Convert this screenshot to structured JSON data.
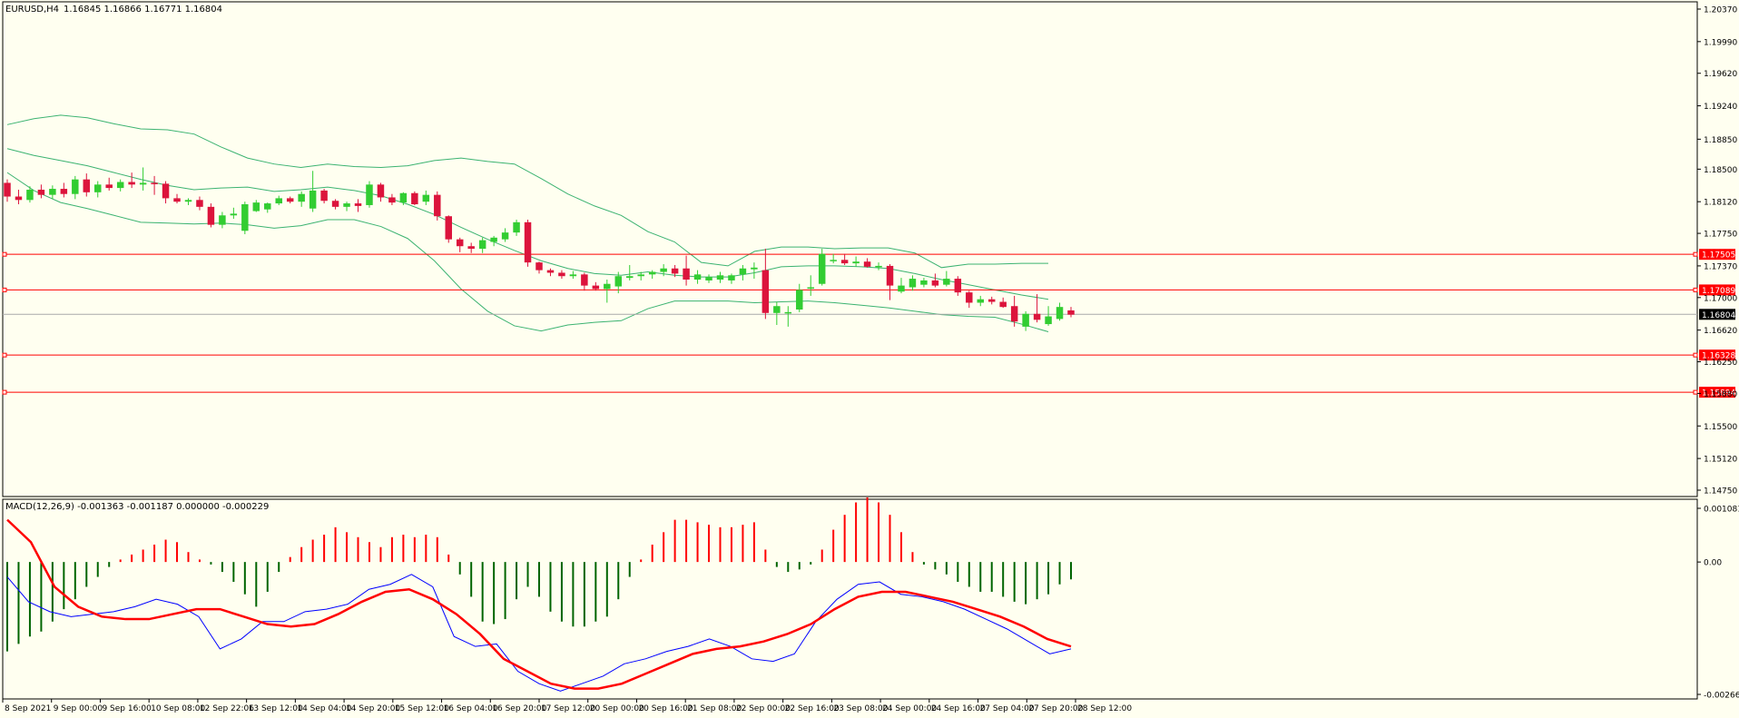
{
  "header": {
    "symbol": "EURUSD,H4",
    "ohlc": "1.16845 1.16866 1.16771 1.16804"
  },
  "colors": {
    "background": "#fffff0",
    "bull": "#32cd32",
    "bear": "#dc143c",
    "bands": "#3cb371",
    "levels": "#ff0000",
    "macd_hist_pos": "#ff0000",
    "macd_hist_neg": "#006400",
    "macd_main": "#0000ff",
    "macd_signal": "#ff0000",
    "axis_text": "#000000",
    "current_price_box": "#000000"
  },
  "chart_data": [
    {
      "type": "candlestick",
      "title": "EURUSD,H4",
      "ylim": [
        1.1475,
        1.2037
      ],
      "y_ticks": [
        "1.20370",
        "1.19990",
        "1.19620",
        "1.19240",
        "1.18850",
        "1.18500",
        "1.18120",
        "1.17750",
        "1.17370",
        "1.17000",
        "1.16620",
        "1.16250",
        "1.15880",
        "1.15500",
        "1.15120",
        "1.14750"
      ],
      "x_labels": [
        "8 Sep 2021",
        "9 Sep 00:00",
        "9 Sep 16:00",
        "10 Sep 08:00",
        "12 Sep 22:06",
        "13 Sep 12:00",
        "14 Sep 04:00",
        "14 Sep 20:00",
        "15 Sep 12:00",
        "16 Sep 04:00",
        "16 Sep 20:00",
        "17 Sep 12:00",
        "20 Sep 00:00",
        "20 Sep 16:00",
        "21 Sep 08:00",
        "22 Sep 00:00",
        "22 Sep 16:00",
        "23 Sep 08:00",
        "24 Sep 00:00",
        "24 Sep 16:00",
        "27 Sep 04:00",
        "27 Sep 20:00",
        "28 Sep 12:00"
      ],
      "candles": [
        [
          1.1834,
          1.1838,
          1.1812,
          1.1818
        ],
        [
          1.1818,
          1.1826,
          1.1809,
          1.1814
        ],
        [
          1.1814,
          1.183,
          1.1811,
          1.1826
        ],
        [
          1.1826,
          1.1832,
          1.1816,
          1.182
        ],
        [
          1.182,
          1.1831,
          1.1815,
          1.1827
        ],
        [
          1.1827,
          1.1834,
          1.1817,
          1.1821
        ],
        [
          1.1821,
          1.1842,
          1.1815,
          1.1838
        ],
        [
          1.1838,
          1.1845,
          1.1818,
          1.1823
        ],
        [
          1.1823,
          1.1836,
          1.1817,
          1.1832
        ],
        [
          1.1832,
          1.184,
          1.1825,
          1.1828
        ],
        [
          1.1828,
          1.1838,
          1.1824,
          1.1835
        ],
        [
          1.1835,
          1.1846,
          1.1828,
          1.1832
        ],
        [
          1.1832,
          1.1852,
          1.1825,
          1.1834
        ],
        [
          1.1834,
          1.1842,
          1.182,
          1.1833
        ],
        [
          1.1833,
          1.1836,
          1.181,
          1.1816
        ],
        [
          1.1816,
          1.1821,
          1.181,
          1.1812
        ],
        [
          1.1812,
          1.1816,
          1.1808,
          1.1814
        ],
        [
          1.1814,
          1.1818,
          1.1802,
          1.1806
        ],
        [
          1.1806,
          1.181,
          1.1782,
          1.1785
        ],
        [
          1.1785,
          1.18,
          1.1781,
          1.1796
        ],
        [
          1.1796,
          1.1805,
          1.1792,
          1.1798
        ],
        [
          1.1778,
          1.1812,
          1.1774,
          1.1809
        ],
        [
          1.1801,
          1.1814,
          1.18,
          1.1811
        ],
        [
          1.1803,
          1.1811,
          1.1799,
          1.181
        ],
        [
          1.181,
          1.1819,
          1.1808,
          1.1816
        ],
        [
          1.1816,
          1.1818,
          1.181,
          1.1812
        ],
        [
          1.1812,
          1.1824,
          1.1806,
          1.1821
        ],
        [
          1.1804,
          1.1848,
          1.18,
          1.1825
        ],
        [
          1.1825,
          1.1827,
          1.181,
          1.1813
        ],
        [
          1.1813,
          1.1815,
          1.1803,
          1.1806
        ],
        [
          1.1806,
          1.1812,
          1.1801,
          1.181
        ],
        [
          1.181,
          1.1815,
          1.18,
          1.1807
        ],
        [
          1.1808,
          1.1836,
          1.1805,
          1.1832
        ],
        [
          1.1832,
          1.1834,
          1.1812,
          1.1817
        ],
        [
          1.1817,
          1.1821,
          1.1808,
          1.1811
        ],
        [
          1.1811,
          1.1823,
          1.1808,
          1.1822
        ],
        [
          1.1822,
          1.1824,
          1.1808,
          1.1809
        ],
        [
          1.1812,
          1.1825,
          1.1808,
          1.182
        ],
        [
          1.182,
          1.1824,
          1.179,
          1.1795
        ],
        [
          1.1795,
          1.1796,
          1.1764,
          1.1768
        ],
        [
          1.1768,
          1.177,
          1.1753,
          1.176
        ],
        [
          1.176,
          1.1764,
          1.1752,
          1.1757
        ],
        [
          1.1757,
          1.177,
          1.1752,
          1.1767
        ],
        [
          1.1765,
          1.1772,
          1.176,
          1.177
        ],
        [
          1.1768,
          1.1781,
          1.1765,
          1.1776
        ],
        [
          1.1776,
          1.1791,
          1.1772,
          1.1788
        ],
        [
          1.1788,
          1.1791,
          1.1736,
          1.1741
        ],
        [
          1.1741,
          1.1742,
          1.1728,
          1.1732
        ],
        [
          1.1732,
          1.1734,
          1.1725,
          1.1729
        ],
        [
          1.1729,
          1.1732,
          1.1722,
          1.1725
        ],
        [
          1.1725,
          1.1731,
          1.1722,
          1.1727
        ],
        [
          1.1727,
          1.1729,
          1.1708,
          1.1714
        ],
        [
          1.1714,
          1.1718,
          1.1708,
          1.171
        ],
        [
          1.171,
          1.1721,
          1.1694,
          1.1716
        ],
        [
          1.1713,
          1.173,
          1.1705,
          1.1725
        ],
        [
          1.1723,
          1.1738,
          1.172,
          1.1725
        ],
        [
          1.1725,
          1.173,
          1.172,
          1.1727
        ],
        [
          1.1727,
          1.1732,
          1.1722,
          1.173
        ],
        [
          1.173,
          1.1739,
          1.1725,
          1.1734
        ],
        [
          1.1734,
          1.1738,
          1.1724,
          1.1728
        ],
        [
          1.1734,
          1.1749,
          1.1714,
          1.1721
        ],
        [
          1.1721,
          1.1732,
          1.1716,
          1.1727
        ],
        [
          1.172,
          1.1727,
          1.1717,
          1.1724
        ],
        [
          1.1721,
          1.173,
          1.1717,
          1.1726
        ],
        [
          1.172,
          1.1728,
          1.1716,
          1.1726
        ],
        [
          1.1727,
          1.1738,
          1.172,
          1.1734
        ],
        [
          1.1733,
          1.1741,
          1.1722,
          1.1735
        ],
        [
          1.1732,
          1.1757,
          1.1675,
          1.1682
        ],
        [
          1.1682,
          1.1695,
          1.1668,
          1.169
        ],
        [
          1.1682,
          1.169,
          1.1666,
          1.1683
        ],
        [
          1.1686,
          1.1716,
          1.1683,
          1.1709
        ],
        [
          1.1712,
          1.1726,
          1.1702,
          1.1712
        ],
        [
          1.1716,
          1.1757,
          1.1714,
          1.1751
        ],
        [
          1.1743,
          1.1751,
          1.174,
          1.1744
        ],
        [
          1.1744,
          1.1751,
          1.1738,
          1.174
        ],
        [
          1.174,
          1.1748,
          1.1736,
          1.1742
        ],
        [
          1.1742,
          1.1746,
          1.1735,
          1.1736
        ],
        [
          1.1736,
          1.1741,
          1.1732,
          1.1737
        ],
        [
          1.1737,
          1.1739,
          1.1697,
          1.1714
        ],
        [
          1.1707,
          1.1723,
          1.1705,
          1.1714
        ],
        [
          1.1712,
          1.1726,
          1.1708,
          1.1722
        ],
        [
          1.1715,
          1.1723,
          1.1712,
          1.172
        ],
        [
          1.172,
          1.1728,
          1.1712,
          1.1714
        ],
        [
          1.1715,
          1.1731,
          1.1713,
          1.1722
        ],
        [
          1.1722,
          1.1725,
          1.1702,
          1.1706
        ],
        [
          1.1706,
          1.1708,
          1.1688,
          1.1694
        ],
        [
          1.1694,
          1.1702,
          1.169,
          1.1698
        ],
        [
          1.1698,
          1.1701,
          1.1692,
          1.1695
        ],
        [
          1.1695,
          1.17,
          1.1688,
          1.1689
        ],
        [
          1.169,
          1.1702,
          1.1666,
          1.1672
        ],
        [
          1.1666,
          1.1684,
          1.1661,
          1.1681
        ],
        [
          1.1681,
          1.1704,
          1.1671,
          1.1674
        ],
        [
          1.1669,
          1.169,
          1.1667,
          1.1678
        ],
        [
          1.1675,
          1.1694,
          1.1673,
          1.1689
        ],
        [
          1.1685,
          1.1689,
          1.1677,
          1.168
        ]
      ],
      "bollinger_upper": [
        1.1902,
        1.1909,
        1.1913,
        1.191,
        1.1903,
        1.1897,
        1.1896,
        1.1891,
        1.1876,
        1.1863,
        1.1856,
        1.1852,
        1.1856,
        1.1853,
        1.1852,
        1.1854,
        1.186,
        1.1863,
        1.1859,
        1.1856,
        1.1839,
        1.1821,
        1.1807,
        1.1796,
        1.1777,
        1.1765,
        1.1741,
        1.1737,
        1.1754,
        1.1759,
        1.1759,
        1.1757,
        1.1758,
        1.1758,
        1.1752,
        1.1735,
        1.1739,
        1.1739,
        1.174,
        1.174
      ],
      "bollinger_middle": [
        1.1874,
        1.1866,
        1.186,
        1.1854,
        1.1846,
        1.1838,
        1.1831,
        1.1826,
        1.1828,
        1.1829,
        1.1824,
        1.1826,
        1.1829,
        1.1825,
        1.1819,
        1.1809,
        1.1797,
        1.1782,
        1.1768,
        1.1755,
        1.1743,
        1.1734,
        1.1728,
        1.1726,
        1.173,
        1.1726,
        1.1724,
        1.1724,
        1.1729,
        1.1736,
        1.1737,
        1.1737,
        1.1736,
        1.1734,
        1.1728,
        1.1721,
        1.1715,
        1.1709,
        1.1703,
        1.1698
      ],
      "bollinger_lower": [
        1.1846,
        1.1825,
        1.1811,
        1.1804,
        1.1796,
        1.1788,
        1.1787,
        1.1786,
        1.1787,
        1.1785,
        1.1781,
        1.1784,
        1.1791,
        1.1791,
        1.1783,
        1.1769,
        1.1743,
        1.171,
        1.1684,
        1.1667,
        1.1661,
        1.1668,
        1.1671,
        1.1673,
        1.1687,
        1.1696,
        1.1696,
        1.1696,
        1.1694,
        1.1695,
        1.1696,
        1.1694,
        1.1691,
        1.1688,
        1.1684,
        1.168,
        1.1678,
        1.1677,
        1.1669,
        1.166
      ],
      "levels": [
        {
          "value": 1.17505,
          "label": "1.17505"
        },
        {
          "value": 1.17089,
          "label": "1.17089"
        },
        {
          "value": 1.16328,
          "label": "1.16328"
        },
        {
          "value": 1.15894,
          "label": "1.15894"
        }
      ],
      "current_price": {
        "value": 1.16804,
        "label": "1.16804"
      }
    },
    {
      "type": "macd",
      "title": "MACD(12,26,9) -0.001363 -0.001187 0.000000 -0.000229",
      "ylim": [
        -0.002666,
        0.001081
      ],
      "y_ticks": [
        "0.001081",
        "0.00",
        "-0.002666"
      ],
      "histogram": [
        -0.0018,
        -0.00165,
        -0.0015,
        -0.0014,
        -0.0012,
        -0.00095,
        -0.00075,
        -0.0005,
        -0.0003,
        -0.0001,
        5e-05,
        0.00015,
        0.00025,
        0.00035,
        0.00045,
        0.0004,
        0.0002,
        5e-05,
        -5e-05,
        -0.0002,
        -0.0004,
        -0.00065,
        -0.0009,
        -0.0006,
        -0.0002,
        0.0001,
        0.0003,
        0.00045,
        0.00055,
        0.0007,
        0.0006,
        0.0005,
        0.0004,
        0.0003,
        0.0005,
        0.00055,
        0.0005,
        0.00055,
        0.0005,
        0.00015,
        -0.00025,
        -0.0007,
        -0.0012,
        -0.00125,
        -0.00115,
        -0.00075,
        -0.0005,
        -0.0007,
        -0.001,
        -0.0012,
        -0.0013,
        -0.0013,
        -0.0012,
        -0.0011,
        -0.00075,
        -0.0003,
        5e-05,
        0.00035,
        0.0006,
        0.00085,
        0.00085,
        0.0008,
        0.00075,
        0.0007,
        0.0007,
        0.00075,
        0.0008,
        0.00025,
        -0.0001,
        -0.0002,
        -0.00015,
        -5e-05,
        0.00025,
        0.00065,
        0.00095,
        0.0012,
        0.0013,
        0.0012,
        0.00095,
        0.0006,
        0.0002,
        -5e-05,
        -0.00015,
        -0.00025,
        -0.0004,
        -0.0005,
        -0.0006,
        -0.0006,
        -0.0007,
        -0.0008,
        -0.00085,
        -0.00075,
        -0.00065,
        -0.00045,
        -0.00035
      ],
      "macd_main": [
        -0.0003,
        -0.0008,
        -0.001,
        -0.0011,
        -0.00105,
        -0.001,
        -0.0009,
        -0.00075,
        -0.00085,
        -0.0011,
        -0.00175,
        -0.00155,
        -0.0012,
        -0.0012,
        -0.001,
        -0.00095,
        -0.00085,
        -0.00055,
        -0.00045,
        -0.00025,
        -0.0005,
        -0.0015,
        -0.0017,
        -0.00165,
        -0.0022,
        -0.00245,
        -0.0026,
        -0.00245,
        -0.0023,
        -0.00205,
        -0.00195,
        -0.0018,
        -0.0017,
        -0.00155,
        -0.0017,
        -0.00195,
        -0.002,
        -0.00185,
        -0.0012,
        -0.00075,
        -0.00045,
        -0.0004,
        -0.00065,
        -0.0007,
        -0.0008,
        -0.00095,
        -0.00115,
        -0.00135,
        -0.0016,
        -0.00185,
        -0.00175
      ],
      "macd_signal": [
        0.00085,
        0.0004,
        -0.0005,
        -0.0009,
        -0.0011,
        -0.00115,
        -0.00115,
        -0.00105,
        -0.00095,
        -0.00095,
        -0.0011,
        -0.00125,
        -0.0013,
        -0.00125,
        -0.00105,
        -0.0008,
        -0.0006,
        -0.00055,
        -0.00075,
        -0.00105,
        -0.00145,
        -0.00195,
        -0.0022,
        -0.00245,
        -0.00255,
        -0.00255,
        -0.00245,
        -0.00225,
        -0.00205,
        -0.00185,
        -0.00175,
        -0.0017,
        -0.0016,
        -0.00145,
        -0.00125,
        -0.00095,
        -0.0007,
        -0.0006,
        -0.0006,
        -0.0007,
        -0.0008,
        -0.00095,
        -0.0011,
        -0.0013,
        -0.00155,
        -0.0017
      ]
    }
  ]
}
